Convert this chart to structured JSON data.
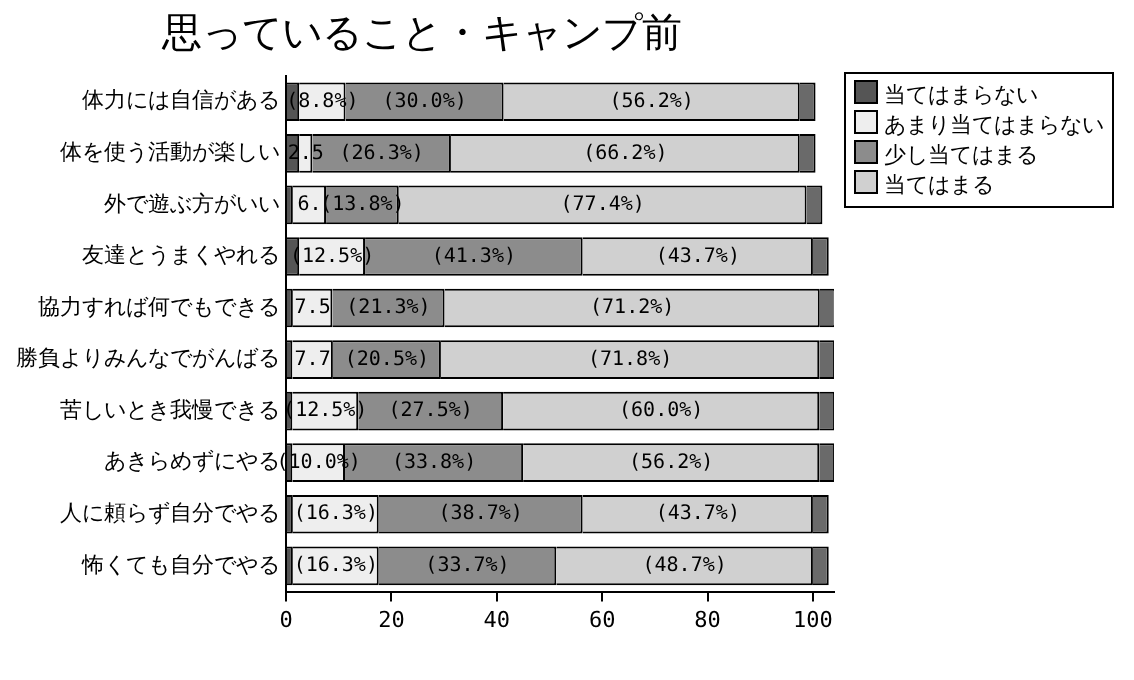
{
  "chart_data": {
    "type": "bar",
    "orientation": "horizontal",
    "stacked": true,
    "title": "思っていること・キャンプ前",
    "categories": [
      "体力には自信がある",
      "体を使う活動が楽しい",
      "外で遊ぶ方がいい",
      "友達とうまくやれる",
      "協力すれば何でもできる",
      "勝負よりみんなでがんばる",
      "苦しいとき我慢できる",
      "あきらめずにやる",
      "人に頼らず自分でやる",
      "怖くても自分でやる"
    ],
    "series": [
      {
        "name": "当てはまらない",
        "color": "#555555",
        "values": [
          2.5,
          2.5,
          1.3,
          2.5,
          1.3,
          1.2,
          1.2,
          1.2,
          1.3,
          1.3
        ]
      },
      {
        "name": "あまり当てはまらない",
        "color": "#eeeeee",
        "values": [
          8.8,
          2.5,
          6.3,
          12.5,
          7.5,
          7.7,
          12.5,
          10.0,
          16.3,
          16.3
        ],
        "value_labels": [
          "(8.8%)",
          "2.5",
          "6.",
          "(12.5%)",
          "7.5",
          "7.7",
          "(12.5%)",
          "(10.0%)",
          "(16.3%)",
          "(16.3%)"
        ]
      },
      {
        "name": "少し当てはまる",
        "color": "#8c8c8c",
        "values": [
          30.0,
          26.3,
          13.8,
          41.3,
          21.3,
          20.5,
          27.5,
          33.8,
          38.7,
          33.7
        ],
        "value_labels": [
          "(30.0%)",
          "(26.3%)",
          "(13.8%)",
          "(41.3%)",
          "(21.3%)",
          "(20.5%)",
          "(27.5%)",
          "(33.8%)",
          "(38.7%)",
          "(33.7%)"
        ]
      },
      {
        "name": "当てはまる",
        "color": "#d0d0d0",
        "values": [
          56.2,
          66.2,
          77.4,
          43.7,
          71.2,
          71.8,
          60.0,
          56.2,
          43.7,
          48.7
        ],
        "value_labels": [
          "(56.2%)",
          "(66.2%)",
          "(77.4%)",
          "(43.7%)",
          "(71.2%)",
          "(71.8%)",
          "(60.0%)",
          "(56.2%)",
          "(43.7%)",
          "(48.7%)"
        ]
      },
      {
        "color": "#6a6a6a",
        "values": [
          3,
          3,
          3,
          3,
          3,
          3,
          3,
          3,
          3,
          3
        ]
      }
    ],
    "xlim": [
      0,
      104
    ],
    "xticks": [
      0,
      20,
      40,
      60,
      80,
      100
    ],
    "grid": false,
    "legend": "top right"
  }
}
